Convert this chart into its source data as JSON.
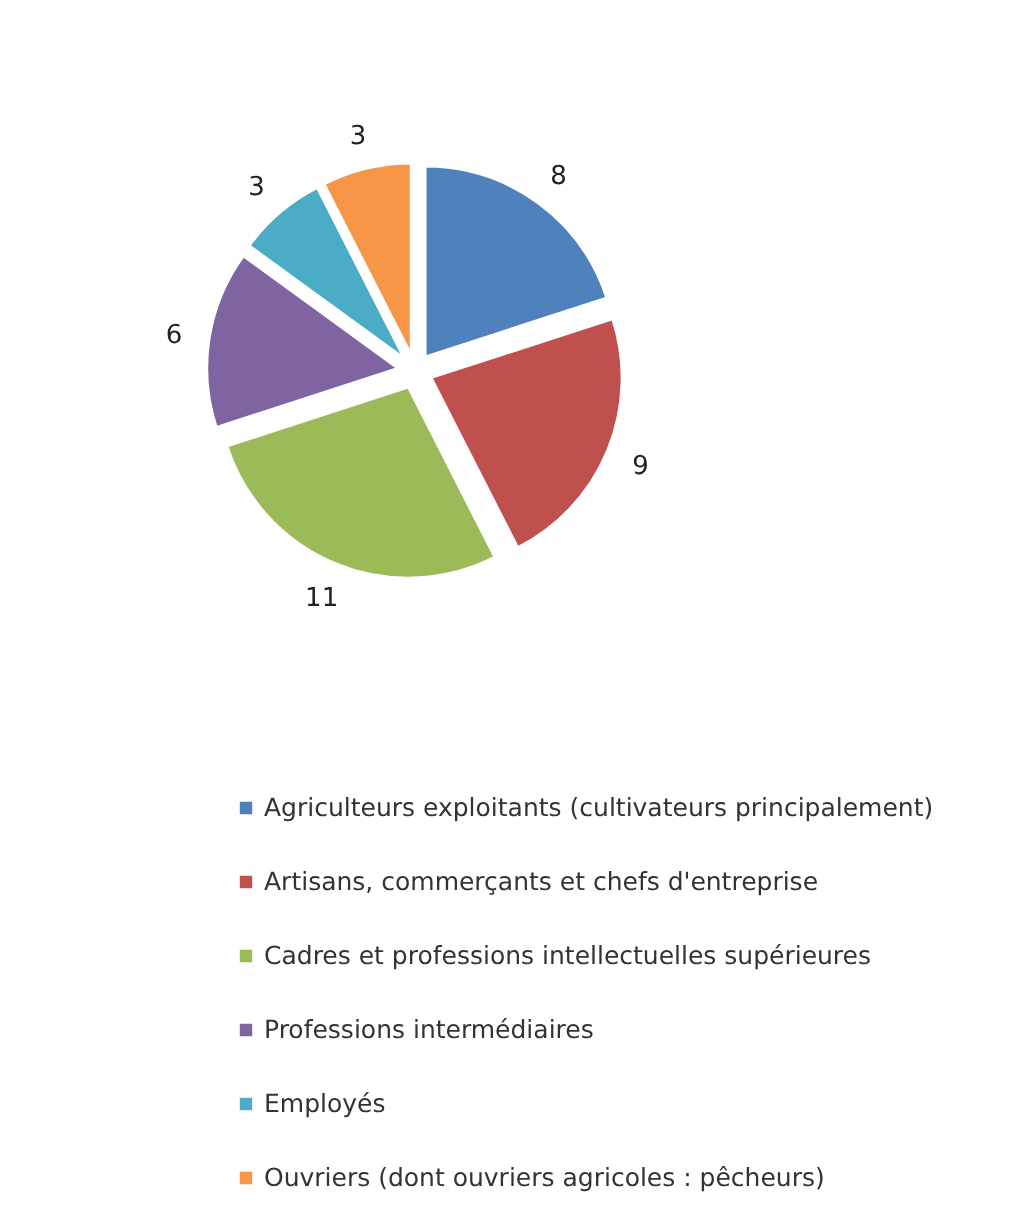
{
  "chart_data": {
    "type": "pie",
    "categories": [
      "Agriculteurs exploitants (cultivateurs principalement)",
      "Artisans, commerçants et chefs d'entreprise",
      "Cadres et professions intellectuelles supérieures",
      "Professions intermédiaires",
      "Employés",
      "Ouvriers (dont ouvriers agricoles : pêcheurs)"
    ],
    "values": [
      8,
      9,
      11,
      6,
      3,
      3
    ],
    "colors": [
      "#4f81bd",
      "#c0504d",
      "#9bbb59",
      "#8064a2",
      "#4bacc6",
      "#f79646"
    ],
    "data_labels": true,
    "legend": "bottom"
  }
}
